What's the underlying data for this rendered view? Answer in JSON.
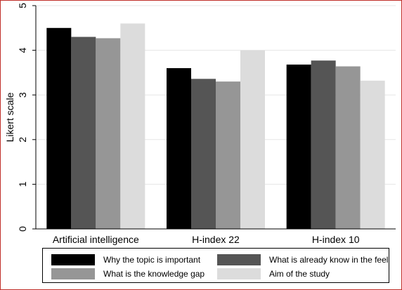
{
  "chart_data": {
    "type": "bar",
    "ylabel": "Likert scale",
    "ylim": [
      0,
      5
    ],
    "yticks": [
      0,
      1,
      2,
      3,
      4,
      5
    ],
    "categories": [
      "Artificial intelligence",
      "H-index 22",
      "H-index 10"
    ],
    "series": [
      {
        "name": "Why the topic is important",
        "color": "#000000",
        "values": [
          4.5,
          3.6,
          3.68
        ]
      },
      {
        "name": "What is already know in the feel",
        "color": "#555555",
        "values": [
          4.3,
          3.36,
          3.77
        ]
      },
      {
        "name": "What is the knowledge gap",
        "color": "#969696",
        "values": [
          4.27,
          3.3,
          3.64
        ]
      },
      {
        "name": "Aim of the study",
        "color": "#dcdcdc",
        "values": [
          4.6,
          4.0,
          3.32
        ]
      }
    ],
    "grid": true,
    "legend_position": "bottom"
  }
}
